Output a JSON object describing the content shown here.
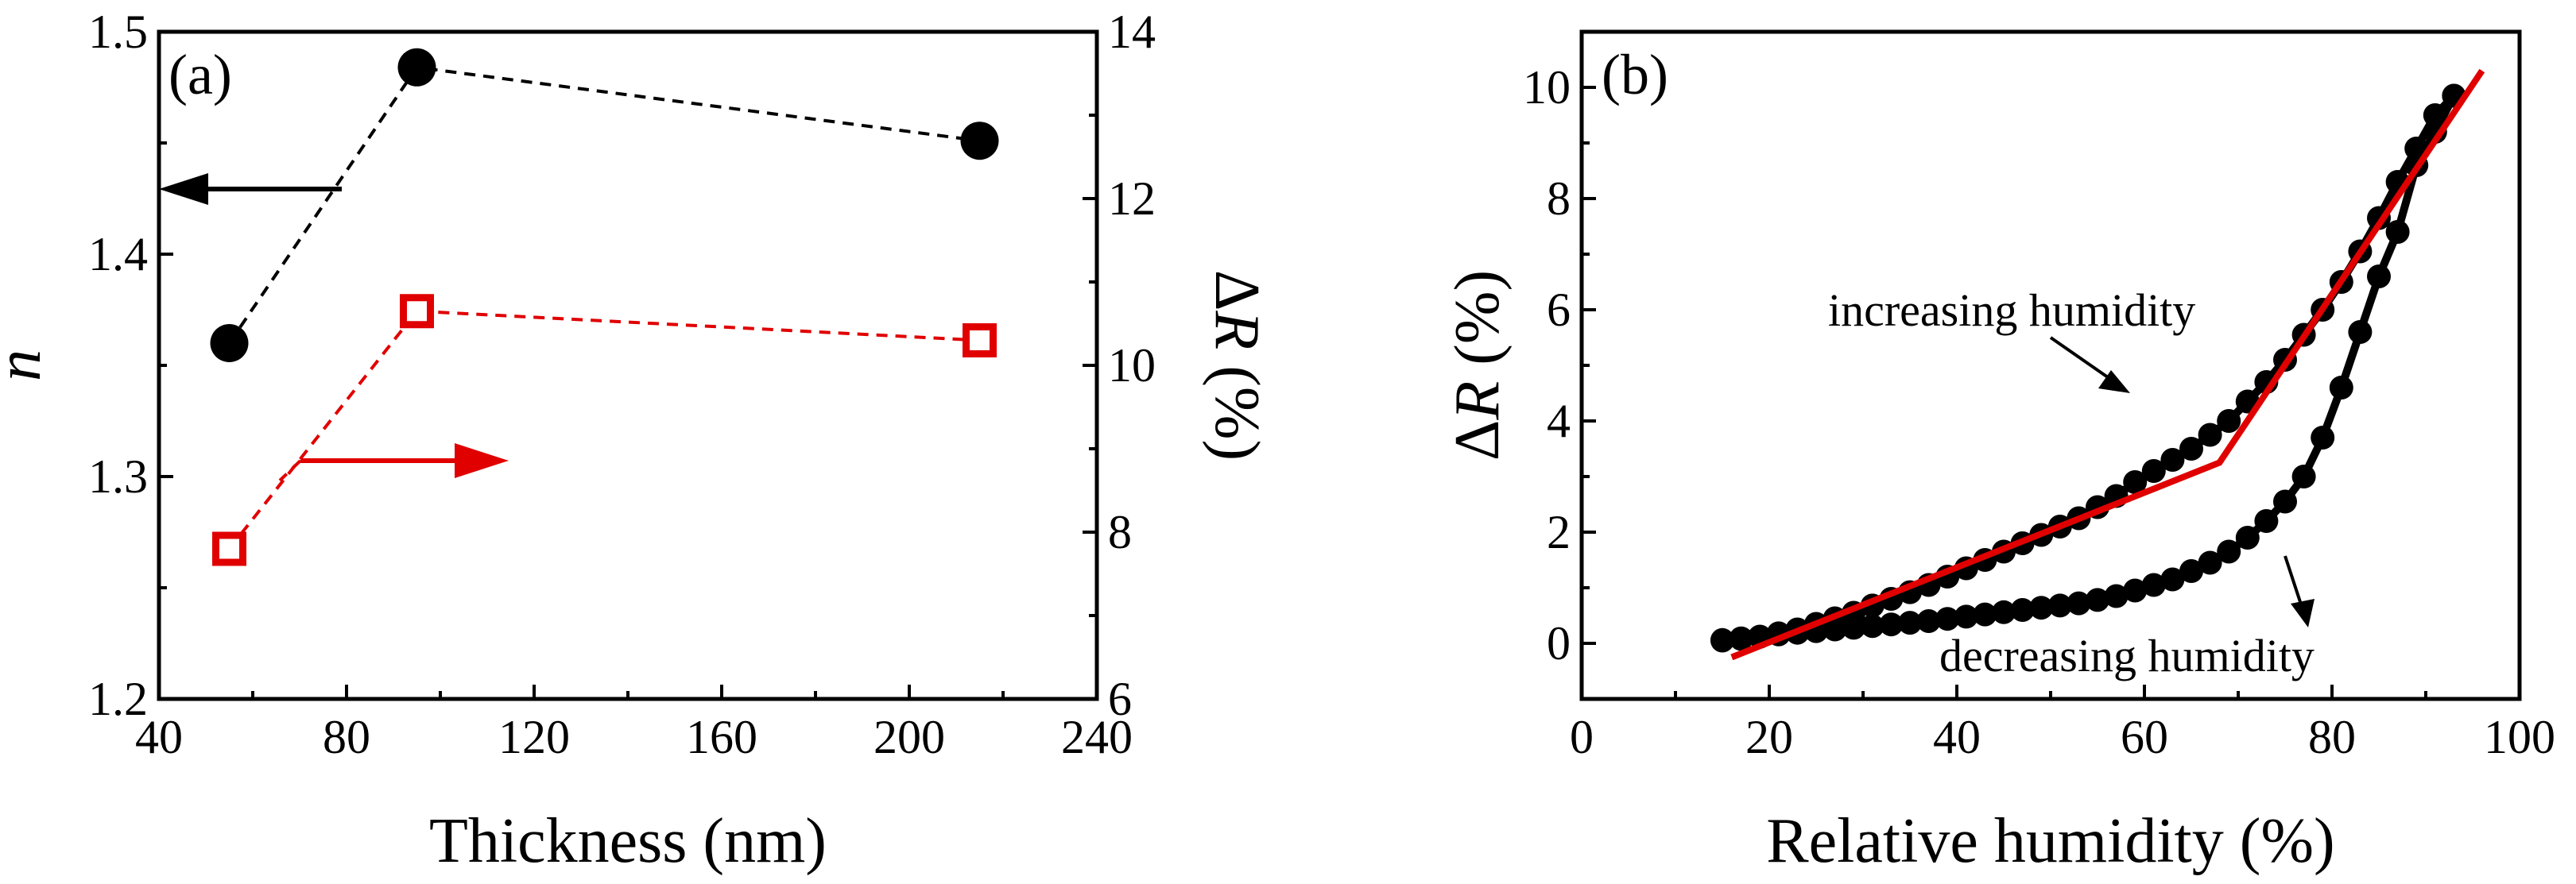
{
  "chart_data": [
    {
      "panel_label": "(a)",
      "type": "scatter",
      "xlabel": "Thickness (nm)",
      "xlim": [
        40,
        240
      ],
      "xticks": [
        "40",
        "80",
        "120",
        "160",
        "200",
        "240"
      ],
      "y_left": {
        "label_italic": "n",
        "ylim": [
          1.2,
          1.5
        ],
        "ticks": [
          "1.2",
          "1.3",
          "1.4",
          "1.5"
        ]
      },
      "y_right": {
        "label_delta": "Δ",
        "label_italic": "R",
        "label_unit": " (%)",
        "ylim": [
          6,
          14
        ],
        "ticks": [
          "6",
          "8",
          "10",
          "12",
          "14"
        ]
      },
      "series": [
        {
          "name": "n",
          "axis": "left",
          "marker": "filled-circle",
          "color": "#000000",
          "x": [
            55,
            95,
            215
          ],
          "y": [
            1.36,
            1.484,
            1.451
          ]
        },
        {
          "name": "ΔR (%)",
          "axis": "right",
          "marker": "open-square",
          "color": "#e00000",
          "x": [
            55,
            95,
            215
          ],
          "y": [
            7.8,
            10.65,
            10.3
          ]
        }
      ]
    },
    {
      "panel_label": "(b)",
      "type": "line",
      "xlabel": "Relative humidity (%)",
      "xlim": [
        0,
        100
      ],
      "xticks": [
        "0",
        "20",
        "40",
        "60",
        "80",
        "100"
      ],
      "ylabel_delta": "Δ",
      "ylabel_italic": "R",
      "ylabel_unit": " (%)",
      "ylim": [
        -1,
        11
      ],
      "yticks": [
        "0",
        "2",
        "4",
        "6",
        "8",
        "10"
      ],
      "annotations": [
        "increasing humidity",
        "decreasing humidity"
      ],
      "series": [
        {
          "name": "increasing humidity",
          "marker": "filled-circle",
          "color": "#000000",
          "x": [
            15,
            17,
            19,
            21,
            23,
            25,
            27,
            29,
            31,
            33,
            35,
            37,
            39,
            41,
            43,
            45,
            47,
            49,
            51,
            53,
            55,
            57,
            59,
            61,
            63,
            65,
            67,
            69,
            71,
            73,
            75,
            77,
            79,
            81,
            83,
            85,
            87,
            89,
            91,
            93
          ],
          "y": [
            0.05,
            0.08,
            0.12,
            0.18,
            0.25,
            0.35,
            0.45,
            0.55,
            0.68,
            0.8,
            0.92,
            1.05,
            1.2,
            1.35,
            1.5,
            1.65,
            1.8,
            1.95,
            2.1,
            2.25,
            2.45,
            2.65,
            2.9,
            3.1,
            3.3,
            3.5,
            3.75,
            4.0,
            4.35,
            4.7,
            5.1,
            5.55,
            6.0,
            6.5,
            7.05,
            7.65,
            8.3,
            8.9,
            9.5,
            9.85
          ]
        },
        {
          "name": "decreasing humidity",
          "marker": "filled-circle",
          "color": "#000000",
          "x": [
            93,
            91,
            89,
            87,
            85,
            83,
            81,
            79,
            77,
            75,
            73,
            71,
            69,
            67,
            65,
            63,
            61,
            59,
            57,
            55,
            53,
            51,
            49,
            47,
            45,
            43,
            41,
            39,
            37,
            35,
            33,
            31,
            29,
            27,
            25,
            23,
            21,
            19,
            17,
            15
          ],
          "y": [
            9.85,
            9.2,
            8.6,
            7.4,
            6.6,
            5.6,
            4.6,
            3.7,
            3.0,
            2.55,
            2.2,
            1.9,
            1.65,
            1.45,
            1.3,
            1.15,
            1.05,
            0.95,
            0.85,
            0.78,
            0.72,
            0.68,
            0.64,
            0.6,
            0.56,
            0.52,
            0.48,
            0.44,
            0.4,
            0.37,
            0.34,
            0.31,
            0.28,
            0.25,
            0.22,
            0.19,
            0.16,
            0.12,
            0.09,
            0.06
          ]
        },
        {
          "name": "linear fit",
          "marker": "none",
          "color": "#e00000",
          "x": [
            16,
            68,
            96
          ],
          "y": [
            -0.25,
            3.25,
            10.3
          ]
        }
      ]
    }
  ]
}
